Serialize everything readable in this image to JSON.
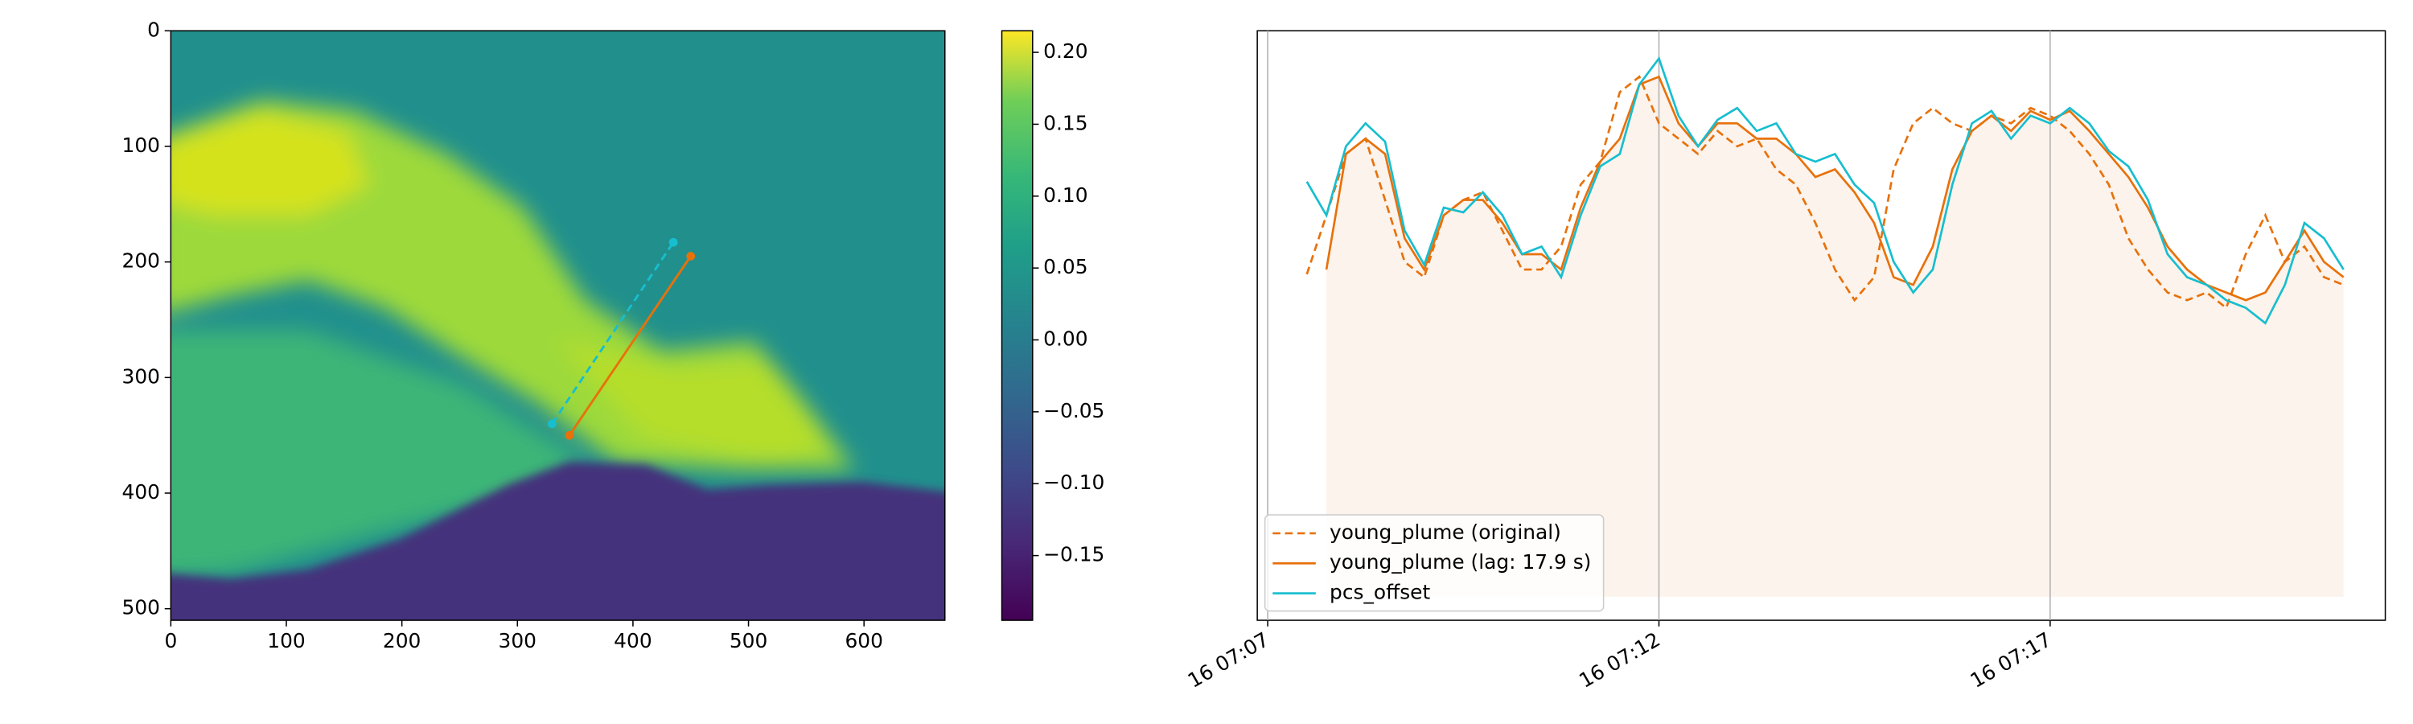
{
  "chart_data": [
    {
      "type": "image",
      "cmap": "viridis",
      "xlim": [
        0,
        670
      ],
      "ylim": [
        510,
        0
      ],
      "xticks": [
        0,
        100,
        200,
        300,
        400,
        500,
        600
      ],
      "yticks": [
        0,
        100,
        200,
        300,
        400,
        500
      ],
      "colorbar": {
        "clim": [
          -0.195,
          0.215
        ],
        "ticks": [
          {
            "value": 0.2,
            "label": "0.20"
          },
          {
            "value": 0.15,
            "label": "0.15"
          },
          {
            "value": 0.1,
            "label": "0.10"
          },
          {
            "value": 0.05,
            "label": "0.05"
          },
          {
            "value": 0,
            "label": "0.00"
          },
          {
            "value": -0.05,
            "label": "−0.05"
          },
          {
            "value": -0.1,
            "label": "−0.10"
          },
          {
            "value": -0.15,
            "label": "−0.15"
          }
        ]
      },
      "lines": [
        {
          "color": "#e8710a",
          "style": "solid",
          "x": [
            345,
            450
          ],
          "y": [
            350,
            195
          ]
        },
        {
          "color": "#17becf",
          "style": "dashed",
          "x": [
            330,
            435
          ],
          "y": [
            340,
            183
          ]
        }
      ]
    },
    {
      "type": "line",
      "xlim": [
        "16 07:06:52",
        "16 07:21:17"
      ],
      "ylim": [
        0,
        1
      ],
      "grid": true,
      "legend": "lower left",
      "xticks": [
        {
          "value": "16 07:07:00",
          "label": "16 07:07"
        },
        {
          "value": "16 07:12:00",
          "label": "16 07:12"
        },
        {
          "value": "16 07:17:00",
          "label": "16 07:17"
        }
      ],
      "x": [
        "16 07:07:30",
        "16 07:07:45",
        "16 07:08:00",
        "16 07:08:15",
        "16 07:08:30",
        "16 07:08:45",
        "16 07:09:00",
        "16 07:09:15",
        "16 07:09:30",
        "16 07:09:45",
        "16 07:10:00",
        "16 07:10:15",
        "16 07:10:30",
        "16 07:10:45",
        "16 07:11:00",
        "16 07:11:15",
        "16 07:11:30",
        "16 07:11:45",
        "16 07:12:00",
        "16 07:12:15",
        "16 07:12:30",
        "16 07:12:45",
        "16 07:13:00",
        "16 07:13:15",
        "16 07:13:30",
        "16 07:13:45",
        "16 07:14:00",
        "16 07:14:15",
        "16 07:14:30",
        "16 07:14:45",
        "16 07:15:00",
        "16 07:15:15",
        "16 07:15:30",
        "16 07:15:45",
        "16 07:16:00",
        "16 07:16:15",
        "16 07:16:30",
        "16 07:16:45",
        "16 07:17:00",
        "16 07:17:15",
        "16 07:17:30",
        "16 07:17:45",
        "16 07:18:00",
        "16 07:18:15",
        "16 07:18:30",
        "16 07:18:45",
        "16 07:19:00",
        "16 07:19:15",
        "16 07:19:30",
        "16 07:19:45",
        "16 07:20:00",
        "16 07:20:15",
        "16 07:20:30",
        "16 07:20:45"
      ],
      "fill": {
        "series": 1,
        "baseline": 0.04,
        "color": "#fbf3ec"
      },
      "series": [
        {
          "name": "young_plume (original)",
          "color": "#e8710a",
          "style": "dashed",
          "values": [
            0.587,
            0.687,
            0.791,
            0.817,
            0.713,
            0.608,
            0.582,
            0.687,
            0.713,
            0.726,
            0.661,
            0.595,
            0.595,
            0.634,
            0.739,
            0.778,
            0.896,
            0.922,
            0.843,
            0.817,
            0.791,
            0.83,
            0.804,
            0.817,
            0.765,
            0.739,
            0.674,
            0.595,
            0.543,
            0.582,
            0.765,
            0.843,
            0.869,
            0.843,
            0.83,
            0.856,
            0.843,
            0.869,
            0.856,
            0.83,
            0.791,
            0.739,
            0.648,
            0.595,
            0.556,
            0.543,
            0.556,
            0.53,
            0.621,
            0.687,
            0.608,
            0.634,
            0.582,
            0.569
          ]
        },
        {
          "name": "young_plume (lag: 17.9 s)",
          "color": "#e8710a",
          "style": "solid",
          "values": [
            null,
            0.595,
            0.791,
            0.817,
            0.791,
            0.648,
            0.595,
            0.687,
            0.713,
            0.713,
            0.674,
            0.621,
            0.621,
            0.595,
            0.7,
            0.778,
            0.817,
            0.909,
            0.922,
            0.843,
            0.804,
            0.843,
            0.843,
            0.817,
            0.817,
            0.791,
            0.752,
            0.765,
            0.726,
            0.674,
            0.582,
            0.569,
            0.634,
            0.765,
            0.83,
            0.856,
            0.83,
            0.864,
            0.849,
            0.864,
            0.83,
            0.791,
            0.752,
            0.7,
            0.634,
            0.595,
            0.569,
            0.556,
            0.543,
            0.556,
            0.608,
            0.661,
            0.608,
            0.582
          ]
        },
        {
          "name": "pcs_offset",
          "color": "#17becf",
          "style": "solid",
          "values": [
            0.744,
            0.687,
            0.804,
            0.843,
            0.812,
            0.661,
            0.603,
            0.7,
            0.692,
            0.726,
            0.687,
            0.621,
            0.634,
            0.582,
            0.687,
            0.77,
            0.791,
            0.909,
            0.953,
            0.856,
            0.804,
            0.849,
            0.869,
            0.83,
            0.843,
            0.791,
            0.778,
            0.791,
            0.739,
            0.708,
            0.608,
            0.556,
            0.595,
            0.739,
            0.843,
            0.864,
            0.817,
            0.856,
            0.843,
            0.869,
            0.843,
            0.796,
            0.77,
            0.713,
            0.621,
            0.582,
            0.569,
            0.543,
            0.53,
            0.504,
            0.569,
            0.674,
            0.648,
            0.595
          ]
        }
      ]
    }
  ]
}
